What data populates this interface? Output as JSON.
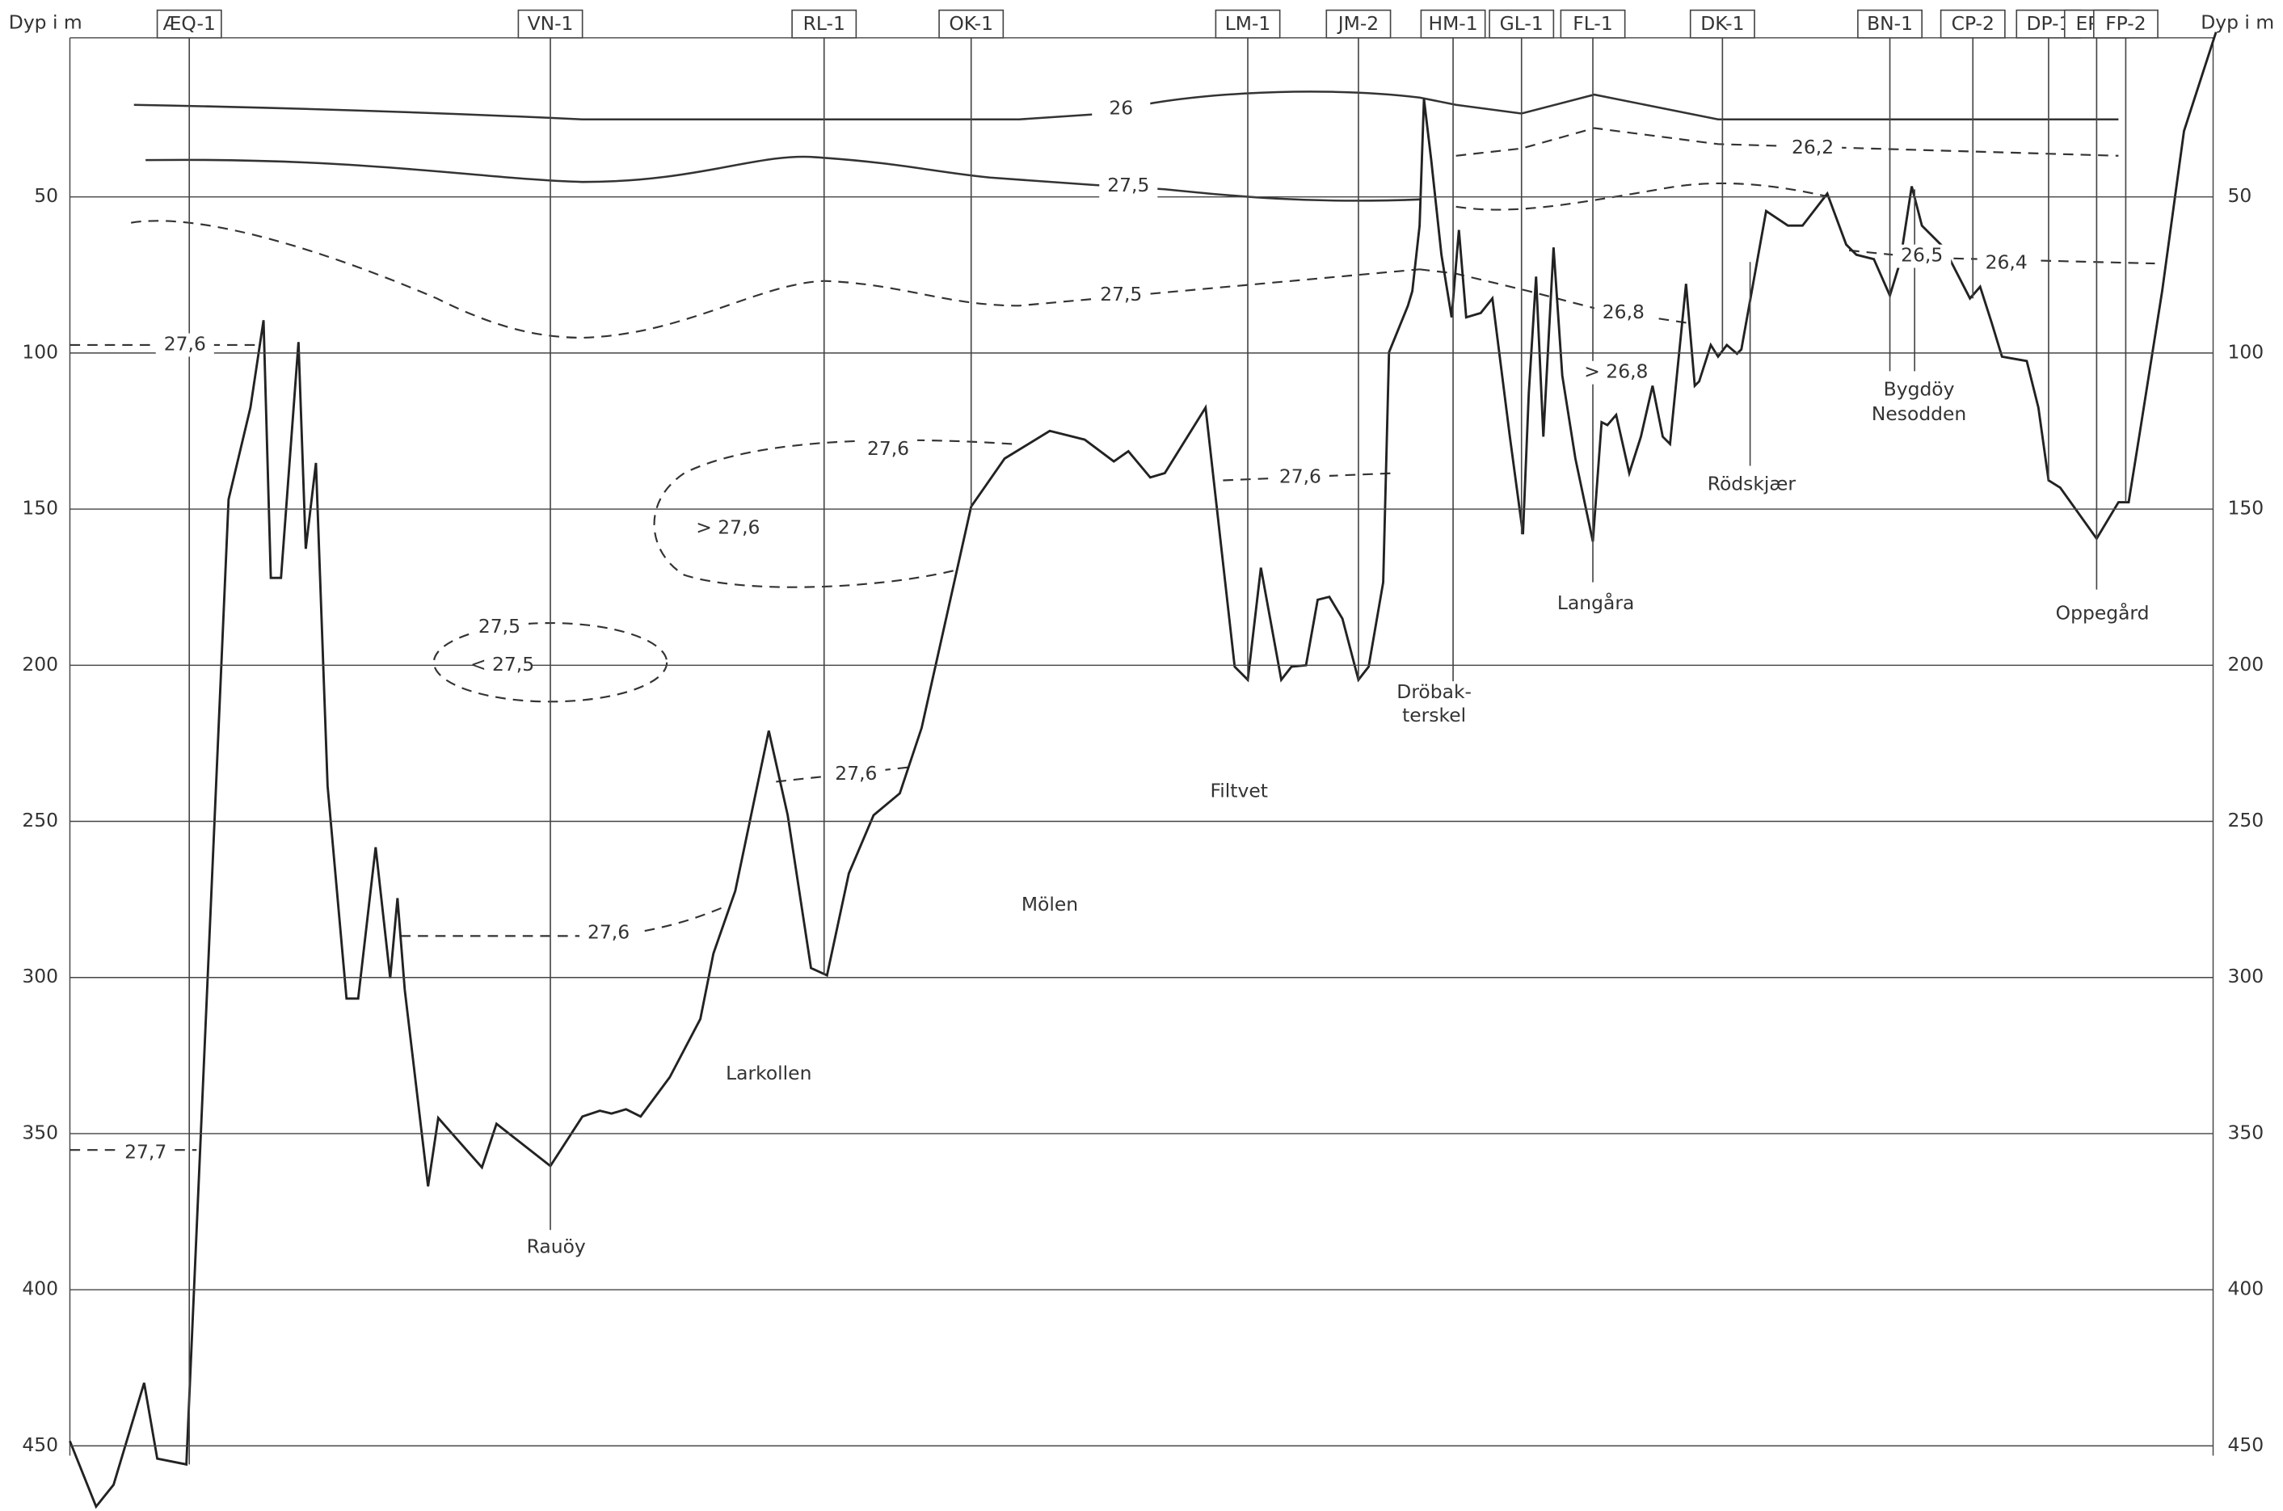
{
  "depth_axis": {
    "title_left": "Dyp i m",
    "title_right": "Dyp i m",
    "ticks": [
      50,
      100,
      150,
      200,
      250,
      300,
      350,
      400,
      450
    ]
  },
  "stations": [
    "ÆQ-1",
    "VN-1",
    "RL-1",
    "OK-1",
    "LM-1",
    "JM-2",
    "HM-1",
    "GL-1",
    "FL-1",
    "DK-1",
    "BN-1",
    "CP-2",
    "DP-1",
    "EP-1",
    "FP-2"
  ],
  "places": [
    "Rauöy",
    "Larkollen",
    "Mölen",
    "Filtvet",
    "Dröbak-",
    "terskel",
    "Langåra",
    "Rödskjær",
    "Bygdöy",
    "Nesodden",
    "Oppegård"
  ],
  "isoline_labels": [
    "26",
    "27,5",
    "27,5",
    "27,6",
    "27,6",
    "> 27,6",
    "27,6",
    "27,5",
    "< 27,5",
    "27,6",
    "27,6",
    "27,7",
    "26,2",
    "26,8",
    "> 26,8",
    "26,5",
    "26,4"
  ]
}
